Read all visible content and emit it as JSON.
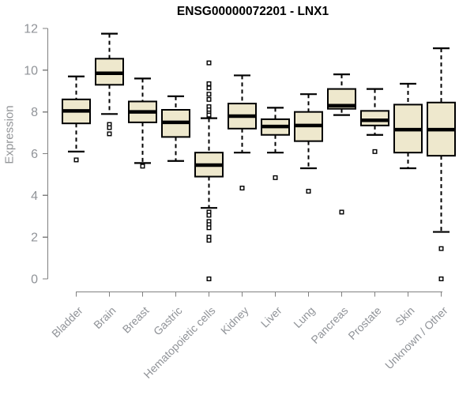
{
  "chart_data": {
    "type": "boxplot",
    "title": "ENSG00000072201 - LNX1",
    "ylabel": "Expression",
    "ylim": [
      0,
      12
    ],
    "yticks": [
      0,
      2,
      4,
      6,
      8,
      10,
      12
    ],
    "grid": false,
    "legend": false,
    "categories": [
      "Bladder",
      "Brain",
      "Breast",
      "Gastric",
      "Hematopoietic cells",
      "Kidney",
      "Liver",
      "Lung",
      "Pancreas",
      "Prostate",
      "Skin",
      "Unknown / Other"
    ],
    "series": [
      {
        "category": "Bladder",
        "whisker_low": 6.1,
        "q1": 7.45,
        "median": 8.05,
        "q3": 8.6,
        "whisker_high": 9.7,
        "outliers": [
          5.7
        ]
      },
      {
        "category": "Brain",
        "whisker_low": 7.9,
        "q1": 9.3,
        "median": 9.85,
        "q3": 10.55,
        "whisker_high": 11.75,
        "outliers": [
          7.4,
          7.25,
          6.95
        ]
      },
      {
        "category": "Breast",
        "whisker_low": 5.55,
        "q1": 7.5,
        "median": 8.0,
        "q3": 8.5,
        "whisker_high": 9.6,
        "outliers": [
          5.4
        ]
      },
      {
        "category": "Gastric",
        "whisker_low": 5.65,
        "q1": 6.8,
        "median": 7.5,
        "q3": 8.1,
        "whisker_high": 8.75,
        "outliers": []
      },
      {
        "category": "Hematopoietic cells",
        "whisker_low": 3.4,
        "q1": 4.9,
        "median": 5.45,
        "q3": 6.05,
        "whisker_high": 7.7,
        "outliers": [
          10.35,
          9.35,
          9.15,
          8.85,
          8.6,
          8.25,
          8.1,
          7.95,
          7.85,
          3.2,
          3.05,
          2.75,
          2.6,
          2.45,
          2.0,
          1.85,
          0.0
        ]
      },
      {
        "category": "Kidney",
        "whisker_low": 6.05,
        "q1": 7.2,
        "median": 7.8,
        "q3": 8.4,
        "whisker_high": 9.75,
        "outliers": [
          4.35
        ]
      },
      {
        "category": "Liver",
        "whisker_low": 6.05,
        "q1": 6.9,
        "median": 7.3,
        "q3": 7.65,
        "whisker_high": 8.2,
        "outliers": [
          4.85
        ]
      },
      {
        "category": "Lung",
        "whisker_low": 5.3,
        "q1": 6.6,
        "median": 7.35,
        "q3": 8.0,
        "whisker_high": 8.85,
        "outliers": [
          4.2
        ]
      },
      {
        "category": "Pancreas",
        "whisker_low": 7.85,
        "q1": 8.15,
        "median": 8.3,
        "q3": 9.1,
        "whisker_high": 9.8,
        "outliers": [
          3.2
        ]
      },
      {
        "category": "Prostate",
        "whisker_low": 6.9,
        "q1": 7.35,
        "median": 7.6,
        "q3": 8.05,
        "whisker_high": 9.1,
        "outliers": [
          6.1
        ]
      },
      {
        "category": "Skin",
        "whisker_low": 5.3,
        "q1": 6.05,
        "median": 7.15,
        "q3": 8.35,
        "whisker_high": 9.35,
        "outliers": []
      },
      {
        "category": "Unknown / Other",
        "whisker_low": 2.25,
        "q1": 5.9,
        "median": 7.15,
        "q3": 8.45,
        "whisker_high": 11.05,
        "outliers": [
          1.45,
          0.0
        ]
      }
    ],
    "colors": {
      "box_fill": "#EEE8CD",
      "box_border": "#000000",
      "median": "#000000",
      "whisker": "#000000",
      "axis": "#808080",
      "tick_label": "#909398",
      "title": "#000000",
      "background": "#ffffff"
    }
  }
}
